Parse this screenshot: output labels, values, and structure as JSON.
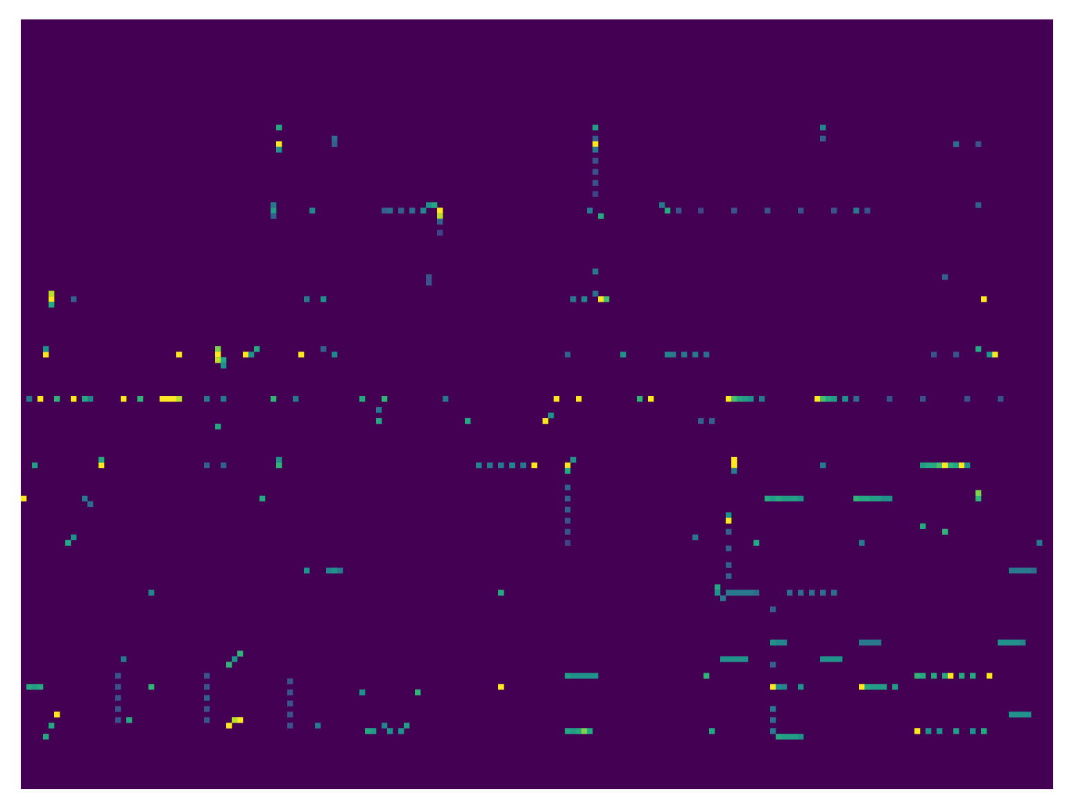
{
  "chart_data": {
    "type": "heatmap",
    "tick_labels": false,
    "xlim": [
      0,
      186
    ],
    "ylim": [
      0,
      139
    ],
    "zlim": [
      0,
      1
    ],
    "cells": [
      [
        19,
        46,
        0.6
      ],
      [
        22,
        46,
        1
      ],
      [
        23,
        46,
        0.5
      ],
      [
        21,
        56,
        0.35
      ],
      [
        22,
        56,
        0.3
      ],
      [
        19,
        103,
        0.55
      ],
      [
        21,
        103,
        0.3
      ],
      [
        22,
        103,
        1
      ],
      [
        23,
        103,
        0.4
      ],
      [
        25,
        103,
        0.25
      ],
      [
        27,
        103,
        0.25
      ],
      [
        29,
        103,
        0.25
      ],
      [
        31,
        103,
        0.2
      ],
      [
        19,
        144,
        0.45
      ],
      [
        21,
        144,
        0.3
      ],
      [
        22,
        168,
        0.35
      ],
      [
        22,
        172,
        0.25
      ],
      [
        33,
        45,
        0.4
      ],
      [
        34,
        45,
        0.55
      ],
      [
        35,
        45,
        0.3
      ],
      [
        34,
        52,
        0.45
      ],
      [
        34,
        65,
        0.3
      ],
      [
        34,
        66,
        0.35
      ],
      [
        34,
        68,
        0.3
      ],
      [
        34,
        70,
        0.35
      ],
      [
        34,
        72,
        0.45
      ],
      [
        33,
        74,
        0.6
      ],
      [
        34,
        75,
        1
      ],
      [
        35,
        75,
        0.9
      ],
      [
        33,
        73,
        0.5
      ],
      [
        36,
        75,
        0.3
      ],
      [
        38,
        75,
        0.2
      ],
      [
        34,
        102,
        0.4
      ],
      [
        35,
        104,
        0.6
      ],
      [
        33,
        115,
        0.4
      ],
      [
        34,
        116,
        0.6
      ],
      [
        34,
        118,
        0.25
      ],
      [
        34,
        122,
        0.2
      ],
      [
        34,
        128,
        0.25
      ],
      [
        34,
        134,
        0.25
      ],
      [
        34,
        140,
        0.25
      ],
      [
        34,
        146,
        0.25
      ],
      [
        34,
        150,
        0.4
      ],
      [
        34,
        152,
        0.25
      ],
      [
        33,
        172,
        0.3
      ],
      [
        46,
        73,
        0.25
      ],
      [
        47,
        73,
        0.25
      ],
      [
        45,
        103,
        0.4
      ],
      [
        50,
        99,
        0.4
      ],
      [
        50,
        101,
        0.45
      ],
      [
        50,
        104,
        1
      ],
      [
        50,
        105,
        0.7
      ],
      [
        49,
        103,
        0.35
      ],
      [
        49,
        5,
        0.9
      ],
      [
        50,
        5,
        1
      ],
      [
        51,
        5,
        0.6
      ],
      [
        50,
        9,
        0.3
      ],
      [
        50,
        51,
        0.4
      ],
      [
        50,
        54,
        0.5
      ],
      [
        50,
        173,
        1
      ],
      [
        46,
        166,
        0.3
      ],
      [
        60,
        4,
        1
      ],
      [
        59,
        4,
        0.5
      ],
      [
        60,
        28,
        1
      ],
      [
        59,
        35,
        0.8
      ],
      [
        60,
        35,
        1
      ],
      [
        61,
        35,
        0.9
      ],
      [
        61,
        36,
        0.6
      ],
      [
        62,
        36,
        0.5
      ],
      [
        60,
        40,
        1
      ],
      [
        60,
        41,
        0.5
      ],
      [
        59,
        42,
        0.6
      ],
      [
        60,
        50,
        1
      ],
      [
        60,
        56,
        0.45
      ],
      [
        59,
        54,
        0.3
      ],
      [
        60,
        98,
        0.3
      ],
      [
        60,
        108,
        0.5
      ],
      [
        60,
        116,
        0.45
      ],
      [
        60,
        117,
        0.4
      ],
      [
        60,
        119,
        0.4
      ],
      [
        60,
        121,
        0.4
      ],
      [
        60,
        123,
        0.35
      ],
      [
        60,
        175,
        1
      ],
      [
        59,
        172,
        0.6
      ],
      [
        60,
        174,
        0.5
      ],
      [
        60,
        164,
        0.25
      ],
      [
        60,
        168,
        0.25
      ],
      [
        68,
        1,
        0.4
      ],
      [
        68,
        3,
        1
      ],
      [
        68,
        6,
        0.65
      ],
      [
        68,
        9,
        1
      ],
      [
        68,
        11,
        0.6
      ],
      [
        68,
        12,
        0.45
      ],
      [
        68,
        18,
        1
      ],
      [
        68,
        21,
        0.65
      ],
      [
        68,
        25,
        1
      ],
      [
        68,
        26,
        1
      ],
      [
        68,
        27,
        1
      ],
      [
        68,
        28,
        0.9
      ],
      [
        68,
        33,
        0.4
      ],
      [
        68,
        36,
        0.4
      ],
      [
        68,
        45,
        0.65
      ],
      [
        68,
        49,
        0.4
      ],
      [
        68,
        61,
        0.6
      ],
      [
        68,
        65,
        0.65
      ],
      [
        70,
        64,
        0.4
      ],
      [
        72,
        64,
        0.6
      ],
      [
        68,
        76,
        0.4
      ],
      [
        72,
        80,
        0.6
      ],
      [
        68,
        96,
        1
      ],
      [
        72,
        94,
        1
      ],
      [
        71,
        95,
        0.5
      ],
      [
        68,
        100,
        1
      ],
      [
        68,
        111,
        0.65
      ],
      [
        68,
        113,
        1
      ],
      [
        68,
        127,
        1
      ],
      [
        68,
        128,
        0.7
      ],
      [
        68,
        129,
        0.6
      ],
      [
        68,
        130,
        0.55
      ],
      [
        68,
        131,
        0.5
      ],
      [
        68,
        133,
        0.4
      ],
      [
        68,
        143,
        1
      ],
      [
        68,
        144,
        0.7
      ],
      [
        68,
        145,
        0.6
      ],
      [
        68,
        146,
        0.55
      ],
      [
        68,
        148,
        0.5
      ],
      [
        68,
        150,
        0.35
      ],
      [
        68,
        156,
        0.25
      ],
      [
        68,
        162,
        0.25
      ],
      [
        68,
        170,
        0.25
      ],
      [
        68,
        176,
        0.25
      ],
      [
        73,
        35,
        0.6
      ],
      [
        72,
        122,
        0.3
      ],
      [
        72,
        124,
        0.3
      ],
      [
        80,
        2,
        0.55
      ],
      [
        80,
        14,
        1
      ],
      [
        79,
        14,
        0.6
      ],
      [
        80,
        33,
        0.3
      ],
      [
        80,
        36,
        0.3
      ],
      [
        80,
        46,
        0.65
      ],
      [
        79,
        46,
        0.5
      ],
      [
        80,
        82,
        0.45
      ],
      [
        80,
        84,
        0.4
      ],
      [
        80,
        86,
        0.4
      ],
      [
        80,
        88,
        0.45
      ],
      [
        80,
        90,
        0.4
      ],
      [
        80,
        92,
        1
      ],
      [
        80,
        98,
        1
      ],
      [
        81,
        98,
        0.6
      ],
      [
        79,
        99,
        0.5
      ],
      [
        79,
        128,
        1
      ],
      [
        80,
        128,
        1
      ],
      [
        81,
        128,
        0.4
      ],
      [
        80,
        144,
        0.4
      ],
      [
        80,
        162,
        0.55
      ],
      [
        80,
        163,
        0.6
      ],
      [
        80,
        164,
        0.6
      ],
      [
        80,
        165,
        0.7
      ],
      [
        80,
        166,
        1
      ],
      [
        80,
        167,
        0.65
      ],
      [
        80,
        168,
        0.6
      ],
      [
        80,
        169,
        1
      ],
      [
        80,
        170,
        0.5
      ],
      [
        86,
        0,
        1
      ],
      [
        86,
        11,
        0.4
      ],
      [
        87,
        12,
        0.35
      ],
      [
        86,
        43,
        0.6
      ],
      [
        86,
        134,
        0.6
      ],
      [
        86,
        135,
        0.55
      ],
      [
        86,
        136,
        0.6
      ],
      [
        86,
        137,
        0.55
      ],
      [
        86,
        138,
        0.55
      ],
      [
        86,
        139,
        0.55
      ],
      [
        86,
        140,
        0.5
      ],
      [
        86,
        150,
        0.65
      ],
      [
        86,
        151,
        0.6
      ],
      [
        86,
        152,
        0.6
      ],
      [
        86,
        153,
        0.55
      ],
      [
        86,
        154,
        0.55
      ],
      [
        86,
        155,
        0.5
      ],
      [
        86,
        156,
        0.5
      ],
      [
        86,
        172,
        0.65
      ],
      [
        85,
        172,
        0.8
      ],
      [
        89,
        127,
        0.5
      ],
      [
        90,
        127,
        1
      ],
      [
        91,
        162,
        0.6
      ],
      [
        92,
        166,
        0.65
      ],
      [
        94,
        8,
        0.6
      ],
      [
        93,
        9,
        0.5
      ],
      [
        94,
        132,
        0.6
      ],
      [
        94,
        183,
        0.4
      ],
      [
        93,
        121,
        0.4
      ],
      [
        94,
        151,
        0.4
      ],
      [
        99,
        51,
        0.5
      ],
      [
        99,
        55,
        0.45
      ],
      [
        99,
        56,
        0.5
      ],
      [
        99,
        57,
        0.4
      ],
      [
        99,
        178,
        0.4
      ],
      [
        99,
        179,
        0.4
      ],
      [
        99,
        180,
        0.4
      ],
      [
        99,
        181,
        0.4
      ],
      [
        99,
        182,
        0.35
      ],
      [
        103,
        23,
        0.45
      ],
      [
        103,
        86,
        0.6
      ],
      [
        102,
        125,
        0.6
      ],
      [
        103,
        125,
        0.5
      ],
      [
        103,
        127,
        0.4
      ],
      [
        103,
        128,
        0.4
      ],
      [
        103,
        129,
        0.4
      ],
      [
        103,
        130,
        0.4
      ],
      [
        103,
        131,
        0.4
      ],
      [
        103,
        132,
        0.35
      ],
      [
        103,
        138,
        0.35
      ],
      [
        103,
        140,
        0.35
      ],
      [
        103,
        142,
        0.35
      ],
      [
        103,
        144,
        0.35
      ],
      [
        103,
        146,
        0.35
      ],
      [
        104,
        126,
        0.4
      ],
      [
        112,
        135,
        0.5
      ],
      [
        112,
        136,
        0.45
      ],
      [
        112,
        137,
        0.45
      ],
      [
        112,
        151,
        0.4
      ],
      [
        112,
        152,
        0.4
      ],
      [
        112,
        153,
        0.4
      ],
      [
        112,
        154,
        0.4
      ],
      [
        112,
        176,
        0.5
      ],
      [
        112,
        177,
        0.5
      ],
      [
        112,
        178,
        0.5
      ],
      [
        112,
        179,
        0.5
      ],
      [
        112,
        180,
        0.45
      ],
      [
        115,
        18,
        0.4
      ],
      [
        116,
        37,
        0.65
      ],
      [
        114,
        39,
        0.65
      ],
      [
        115,
        38,
        0.5
      ],
      [
        115,
        126,
        0.5
      ],
      [
        115,
        127,
        0.5
      ],
      [
        115,
        128,
        0.5
      ],
      [
        115,
        129,
        0.5
      ],
      [
        115,
        130,
        0.5
      ],
      [
        115,
        144,
        0.5
      ],
      [
        115,
        145,
        0.5
      ],
      [
        115,
        146,
        0.5
      ],
      [
        115,
        147,
        0.5
      ],
      [
        118,
        98,
        0.55
      ],
      [
        118,
        99,
        0.5
      ],
      [
        118,
        100,
        0.5
      ],
      [
        118,
        101,
        0.5
      ],
      [
        118,
        102,
        0.5
      ],
      [
        118,
        103,
        0.5
      ],
      [
        118,
        123,
        0.65
      ],
      [
        118,
        161,
        0.65
      ],
      [
        118,
        162,
        0.6
      ],
      [
        118,
        164,
        0.6
      ],
      [
        118,
        166,
        0.6
      ],
      [
        118,
        167,
        1
      ],
      [
        118,
        169,
        0.6
      ],
      [
        118,
        171,
        0.6
      ],
      [
        118,
        174,
        1
      ],
      [
        120,
        1,
        0.6
      ],
      [
        120,
        2,
        0.55
      ],
      [
        120,
        3,
        0.6
      ],
      [
        120,
        23,
        0.65
      ],
      [
        121,
        61,
        0.5
      ],
      [
        121,
        71,
        0.65
      ],
      [
        120,
        86,
        1
      ],
      [
        120,
        135,
        1
      ],
      [
        120,
        136,
        0.5
      ],
      [
        120,
        137,
        0.45
      ],
      [
        120,
        140,
        0.5
      ],
      [
        120,
        151,
        1
      ],
      [
        120,
        152,
        0.6
      ],
      [
        120,
        153,
        0.55
      ],
      [
        120,
        154,
        0.55
      ],
      [
        120,
        155,
        0.55
      ],
      [
        120,
        157,
        0.55
      ],
      [
        125,
        6,
        1
      ],
      [
        125,
        178,
        0.5
      ],
      [
        125,
        179,
        0.5
      ],
      [
        125,
        180,
        0.5
      ],
      [
        125,
        181,
        0.5
      ],
      [
        127,
        5,
        0.6
      ],
      [
        126,
        19,
        0.6
      ],
      [
        127,
        37,
        1
      ],
      [
        126,
        39,
        1
      ],
      [
        126,
        38,
        0.9
      ],
      [
        127,
        53,
        0.4
      ],
      [
        128,
        62,
        0.6
      ],
      [
        128,
        63,
        0.55
      ],
      [
        127,
        65,
        0.45
      ],
      [
        128,
        66,
        0.5
      ],
      [
        128,
        68,
        0.5
      ],
      [
        127,
        69,
        0.55
      ],
      [
        128,
        98,
        0.6
      ],
      [
        128,
        99,
        0.55
      ],
      [
        128,
        100,
        0.6
      ],
      [
        128,
        101,
        0.8
      ],
      [
        128,
        102,
        0.6
      ],
      [
        128,
        124,
        0.6
      ],
      [
        129,
        136,
        0.6
      ],
      [
        129,
        137,
        0.55
      ],
      [
        129,
        138,
        0.55
      ],
      [
        129,
        139,
        0.55
      ],
      [
        129,
        140,
        0.5
      ],
      [
        128,
        161,
        1
      ],
      [
        128,
        163,
        0.5
      ],
      [
        128,
        165,
        0.5
      ],
      [
        128,
        168,
        0.55
      ],
      [
        128,
        171,
        0.5
      ],
      [
        128,
        173,
        0.6
      ],
      [
        129,
        4,
        0.6
      ],
      [
        118,
        17,
        0.25
      ],
      [
        120,
        17,
        0.25
      ],
      [
        122,
        17,
        0.25
      ],
      [
        124,
        17,
        0.25
      ],
      [
        126,
        17,
        0.25
      ],
      [
        118,
        33,
        0.25
      ],
      [
        120,
        33,
        0.25
      ],
      [
        122,
        33,
        0.3
      ],
      [
        124,
        33,
        0.25
      ],
      [
        126,
        33,
        0.25
      ],
      [
        119,
        48,
        0.25
      ],
      [
        121,
        48,
        0.25
      ],
      [
        123,
        48,
        0.25
      ],
      [
        125,
        48,
        0.25
      ],
      [
        127,
        48,
        0.25
      ],
      [
        84,
        98,
        0.3
      ],
      [
        86,
        98,
        0.3
      ],
      [
        88,
        98,
        0.3
      ],
      [
        90,
        98,
        0.25
      ],
      [
        92,
        98,
        0.25
      ],
      [
        94,
        98,
        0.2
      ],
      [
        92,
        127,
        0.3
      ],
      [
        95,
        127,
        0.3
      ],
      [
        98,
        127,
        0.3
      ],
      [
        100,
        127,
        0.3
      ],
      [
        106,
        135,
        0.3
      ],
      [
        116,
        135,
        0.3
      ],
      [
        124,
        135,
        0.4
      ],
      [
        126,
        135,
        0.35
      ],
      [
        128,
        135,
        0.4
      ]
    ]
  }
}
